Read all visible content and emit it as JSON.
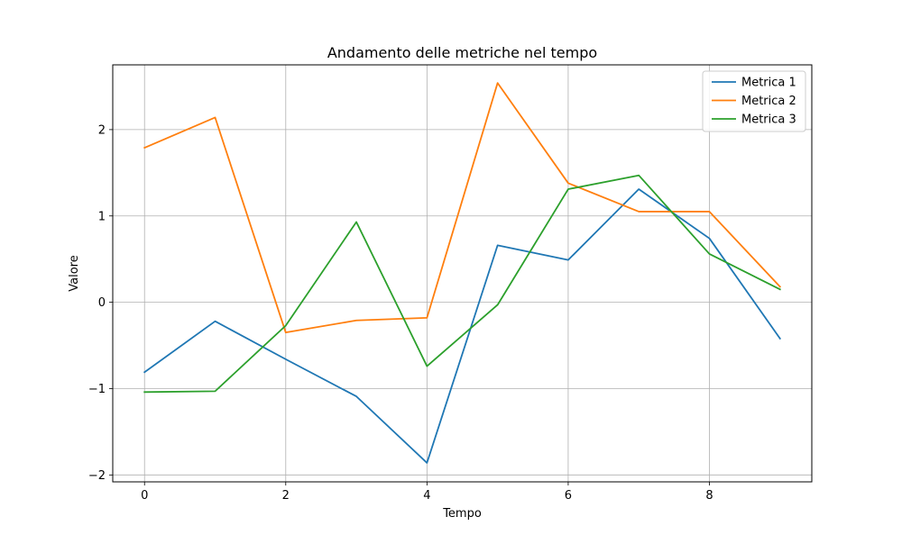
{
  "chart_data": {
    "type": "line",
    "title": "Andamento delle metriche nel tempo",
    "xlabel": "Tempo",
    "ylabel": "Valore",
    "x": [
      0,
      1,
      2,
      3,
      4,
      5,
      6,
      7,
      8,
      9
    ],
    "xlim": [
      -0.45,
      9.45
    ],
    "ylim": [
      -2.08,
      2.75
    ],
    "xticks": [
      0,
      2,
      4,
      6,
      8
    ],
    "xtick_labels": [
      "0",
      "2",
      "4",
      "6",
      "8"
    ],
    "yticks": [
      -2,
      -1,
      0,
      1,
      2
    ],
    "ytick_labels": [
      "−2",
      "−1",
      "0",
      "1",
      "2"
    ],
    "grid": true,
    "legend_position": "top-right",
    "series": [
      {
        "name": "Metrica 1",
        "color": "#1f77b4",
        "values": [
          -0.81,
          -0.22,
          -0.66,
          -1.09,
          -1.86,
          0.66,
          0.49,
          1.31,
          0.74,
          -0.42
        ]
      },
      {
        "name": "Metrica 2",
        "color": "#ff7f0e",
        "values": [
          1.79,
          2.14,
          -0.35,
          -0.21,
          -0.18,
          2.54,
          1.38,
          1.05,
          1.05,
          0.18
        ]
      },
      {
        "name": "Metrica 3",
        "color": "#2ca02c",
        "values": [
          -1.04,
          -1.03,
          -0.27,
          0.93,
          -0.74,
          -0.03,
          1.31,
          1.47,
          0.56,
          0.15
        ]
      }
    ]
  }
}
